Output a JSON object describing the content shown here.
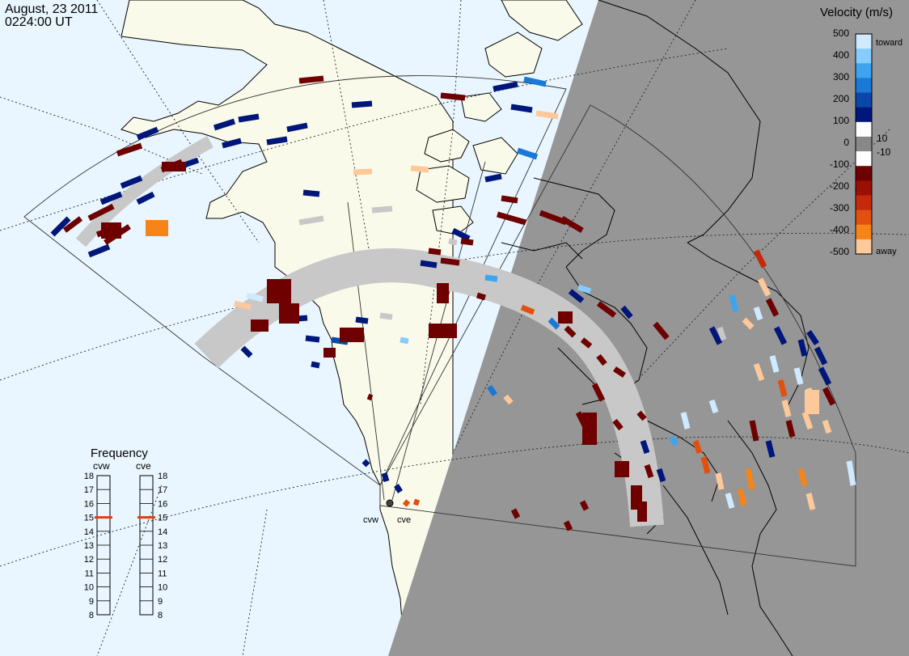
{
  "header": {
    "date": "August, 23 2011",
    "time": "0224:00 UT"
  },
  "velocity_scale": {
    "title": "Velocity (m/s)",
    "ticks": [
      "500",
      "400",
      "300",
      "200",
      "100",
      "10",
      "0",
      "-10",
      "-100",
      "-200",
      "-300",
      "-400",
      "-500"
    ],
    "toward_label": "toward",
    "away_label": "away",
    "colors": {
      "toward": [
        "#cfeaff",
        "#86ccff",
        "#3da4f0",
        "#1a78d6",
        "#0b46a8",
        "#00167a"
      ],
      "away": [
        "#6e0000",
        "#9a1004",
        "#c42a0a",
        "#e25010",
        "#f78418",
        "#fdc89a"
      ],
      "ground_scatter": "#c8c8c8"
    }
  },
  "frequency_panel": {
    "title": "Frequency",
    "radars": [
      {
        "name": "cvw",
        "selected_mhz": 15
      },
      {
        "name": "cve",
        "selected_mhz": 15
      }
    ],
    "ticks": [
      18,
      17,
      16,
      15,
      14,
      13,
      12,
      11,
      10,
      9,
      8
    ],
    "marker_color": "#e04010"
  },
  "radar_sites": [
    {
      "name": "cvw"
    },
    {
      "name": "cve"
    }
  ],
  "map_colors": {
    "ocean": "#e9f6ff",
    "land_day": "#fafaea",
    "night": "#969696"
  }
}
